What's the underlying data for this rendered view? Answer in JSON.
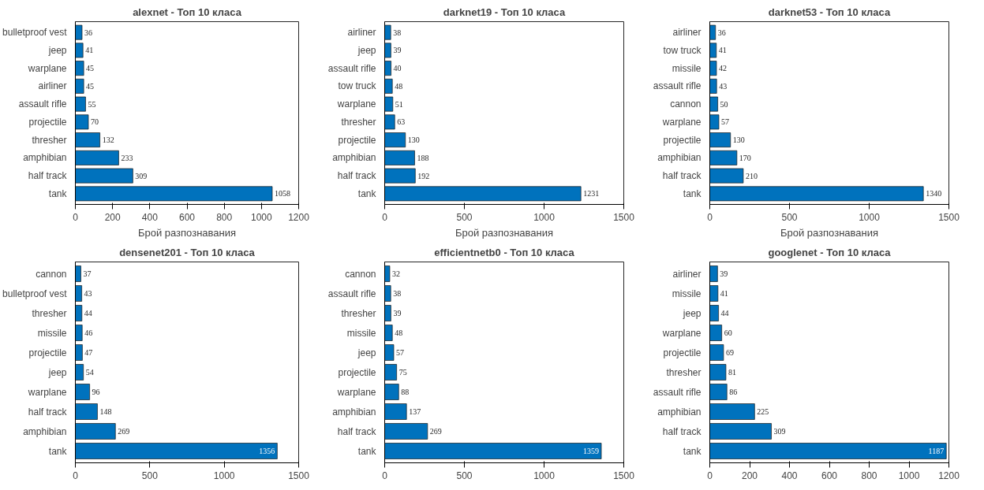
{
  "chart_data": [
    {
      "type": "bar",
      "orientation": "horizontal",
      "title": "alexnet - Топ 10 класа",
      "xlabel": "Брой разпознавания",
      "categories": [
        "bulletproof vest",
        "jeep",
        "warplane",
        "airliner",
        "assault rifle",
        "projectile",
        "thresher",
        "amphibian",
        "half track",
        "tank"
      ],
      "values": [
        36,
        41,
        45,
        45,
        55,
        70,
        132,
        233,
        309,
        1058
      ],
      "color": "#0072bd",
      "xlim": [
        0,
        1200
      ],
      "xticks": [
        0,
        200,
        400,
        600,
        800,
        1000,
        1200
      ],
      "data_labels": true
    },
    {
      "type": "bar",
      "orientation": "horizontal",
      "title": "darknet19 - Топ 10 класа",
      "xlabel": "Брой разпознавания",
      "categories": [
        "airliner",
        "jeep",
        "assault rifle",
        "tow truck",
        "warplane",
        "thresher",
        "projectile",
        "amphibian",
        "half track",
        "tank"
      ],
      "values": [
        38,
        39,
        40,
        48,
        51,
        63,
        130,
        188,
        192,
        1231
      ],
      "color": "#0072bd",
      "xlim": [
        0,
        1500
      ],
      "xticks": [
        0,
        500,
        1000,
        1500
      ],
      "data_labels": true
    },
    {
      "type": "bar",
      "orientation": "horizontal",
      "title": "darknet53 - Топ 10 класа",
      "xlabel": "Брой разпознавания",
      "categories": [
        "airliner",
        "tow truck",
        "missile",
        "assault rifle",
        "cannon",
        "warplane",
        "projectile",
        "amphibian",
        "half track",
        "tank"
      ],
      "values": [
        36,
        41,
        42,
        43,
        50,
        57,
        130,
        170,
        210,
        1340
      ],
      "color": "#0072bd",
      "xlim": [
        0,
        1500
      ],
      "xticks": [
        0,
        500,
        1000,
        1500
      ],
      "data_labels": true
    },
    {
      "type": "bar",
      "orientation": "horizontal",
      "title": "densenet201 - Топ 10 класа",
      "categories": [
        "cannon",
        "bulletproof vest",
        "thresher",
        "missile",
        "projectile",
        "jeep",
        "warplane",
        "half track",
        "amphibian",
        "tank"
      ],
      "values": [
        37,
        43,
        44,
        46,
        47,
        54,
        96,
        148,
        269,
        1356
      ],
      "color": "#0072bd",
      "xlim": [
        0,
        1500
      ],
      "xticks": [
        0,
        500,
        1000,
        1500
      ],
      "data_labels": true
    },
    {
      "type": "bar",
      "orientation": "horizontal",
      "title": "efficientnetb0 - Топ 10 класа",
      "categories": [
        "cannon",
        "assault rifle",
        "thresher",
        "missile",
        "jeep",
        "projectile",
        "warplane",
        "amphibian",
        "half track",
        "tank"
      ],
      "values": [
        32,
        38,
        39,
        48,
        57,
        75,
        88,
        137,
        269,
        1359
      ],
      "color": "#0072bd",
      "xlim": [
        0,
        1500
      ],
      "xticks": [
        0,
        500,
        1000,
        1500
      ],
      "data_labels": true
    },
    {
      "type": "bar",
      "orientation": "horizontal",
      "title": "googlenet - Топ 10 класа",
      "categories": [
        "airliner",
        "missile",
        "jeep",
        "warplane",
        "projectile",
        "thresher",
        "assault rifle",
        "amphibian",
        "half track",
        "tank"
      ],
      "values": [
        39,
        41,
        44,
        60,
        69,
        81,
        86,
        225,
        309,
        1187
      ],
      "color": "#0072bd",
      "xlim": [
        0,
        1200
      ],
      "xticks": [
        0,
        200,
        400,
        600,
        800,
        1000,
        1200
      ],
      "data_labels": true
    }
  ]
}
